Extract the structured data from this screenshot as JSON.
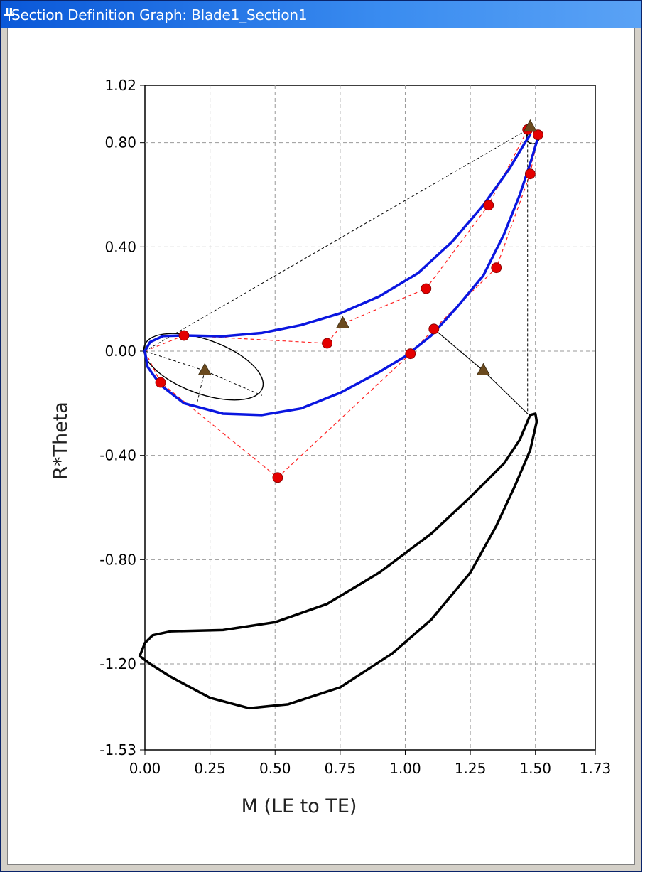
{
  "window": {
    "title": "Section Definition Graph: Blade1_Section1",
    "pin_icon": "pushpin-icon",
    "title_color": "#0a58d8"
  },
  "chart_data": {
    "type": "scatter",
    "xlabel": "M (LE to TE)",
    "ylabel": "R*Theta",
    "xlim": [
      0.0,
      1.73
    ],
    "ylim": [
      -1.53,
      1.02
    ],
    "x_ticks": [
      "0.00",
      "0.25",
      "0.50",
      "0.75",
      "1.00",
      "1.25",
      "1.50",
      "1.73"
    ],
    "y_ticks": [
      "1.02",
      "0.80",
      "0.40",
      "0.00",
      "-0.40",
      "-0.80",
      "-1.20",
      "-1.53"
    ],
    "grid": true,
    "series": [
      {
        "kind": "curve",
        "color": "#0a16e0",
        "points": [
          [
            0.0,
            0.0
          ],
          [
            0.02,
            0.035
          ],
          [
            0.07,
            0.058
          ],
          [
            0.15,
            0.06
          ],
          [
            0.3,
            0.057
          ],
          [
            0.45,
            0.07
          ],
          [
            0.6,
            0.1
          ],
          [
            0.75,
            0.145
          ],
          [
            0.9,
            0.21
          ],
          [
            1.05,
            0.3
          ],
          [
            1.18,
            0.42
          ],
          [
            1.3,
            0.56
          ],
          [
            1.4,
            0.7
          ],
          [
            1.46,
            0.8
          ],
          [
            1.48,
            0.83
          ]
        ]
      },
      {
        "kind": "curve",
        "color": "#0a16e0",
        "points": [
          [
            0.0,
            0.0
          ],
          [
            0.01,
            -0.06
          ],
          [
            0.06,
            -0.13
          ],
          [
            0.15,
            -0.2
          ],
          [
            0.3,
            -0.24
          ],
          [
            0.45,
            -0.245
          ],
          [
            0.6,
            -0.22
          ],
          [
            0.75,
            -0.16
          ],
          [
            0.9,
            -0.08
          ],
          [
            1.0,
            -0.02
          ],
          [
            1.1,
            0.06
          ],
          [
            1.2,
            0.17
          ],
          [
            1.3,
            0.29
          ],
          [
            1.38,
            0.45
          ],
          [
            1.44,
            0.6
          ],
          [
            1.48,
            0.72
          ],
          [
            1.51,
            0.82
          ]
        ]
      },
      {
        "kind": "curve",
        "color": "#000000",
        "points": [
          [
            -0.02,
            -1.17
          ],
          [
            0.0,
            -1.12
          ],
          [
            0.03,
            -1.09
          ],
          [
            0.1,
            -1.075
          ],
          [
            0.3,
            -1.07
          ],
          [
            0.5,
            -1.04
          ],
          [
            0.7,
            -0.97
          ],
          [
            0.9,
            -0.85
          ],
          [
            1.1,
            -0.7
          ],
          [
            1.25,
            -0.56
          ],
          [
            1.38,
            -0.43
          ],
          [
            1.44,
            -0.34
          ],
          [
            1.48,
            -0.245
          ],
          [
            1.5,
            -0.24
          ],
          [
            1.505,
            -0.27
          ],
          [
            1.48,
            -0.38
          ],
          [
            1.42,
            -0.52
          ],
          [
            1.35,
            -0.67
          ],
          [
            1.25,
            -0.85
          ],
          [
            1.1,
            -1.03
          ],
          [
            0.95,
            -1.16
          ],
          [
            0.75,
            -1.29
          ],
          [
            0.55,
            -1.355
          ],
          [
            0.4,
            -1.37
          ],
          [
            0.25,
            -1.33
          ],
          [
            0.1,
            -1.25
          ],
          [
            0.02,
            -1.2
          ],
          [
            -0.02,
            -1.17
          ]
        ]
      },
      {
        "kind": "control-points",
        "color": "#e40000",
        "points": [
          [
            0.15,
            0.06
          ],
          [
            0.7,
            0.03
          ],
          [
            1.08,
            0.24
          ],
          [
            1.32,
            0.56
          ],
          [
            1.47,
            0.85
          ],
          [
            0.06,
            -0.12
          ],
          [
            0.51,
            -0.485
          ],
          [
            1.02,
            -0.01
          ],
          [
            1.11,
            0.085
          ],
          [
            1.35,
            0.32
          ],
          [
            1.48,
            0.68
          ],
          [
            1.51,
            0.83
          ]
        ]
      },
      {
        "kind": "control-markers",
        "color": "#6b4a1e",
        "points": [
          [
            0.23,
            -0.075
          ],
          [
            0.76,
            0.105
          ],
          [
            1.3,
            -0.075
          ],
          [
            1.48,
            0.86
          ]
        ]
      }
    ]
  }
}
